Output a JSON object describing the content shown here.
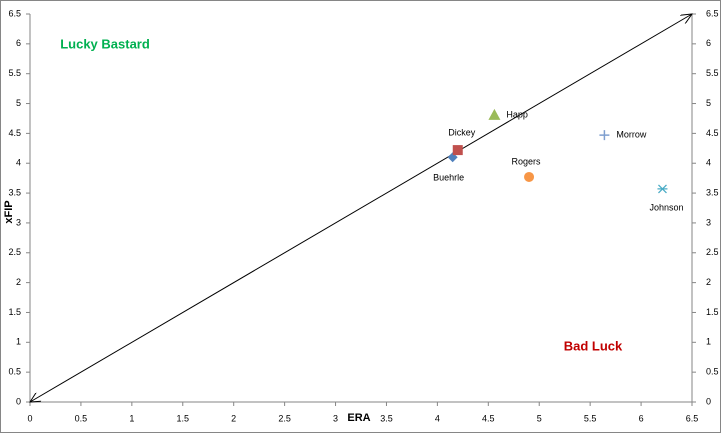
{
  "chart_data": {
    "type": "scatter",
    "x_label": "ERA",
    "y_label": "xFIP",
    "annotations": [
      {
        "text": "Lucky Bastard",
        "color": "#00b050"
      },
      {
        "text": "Bad Luck",
        "color": "#c00000"
      }
    ],
    "series": [
      {
        "name": "Buehrle",
        "marker": "diamond",
        "color": "#4f81bd",
        "x": [
          4.15
        ],
        "y": [
          4.1
        ]
      },
      {
        "name": "Dickey",
        "marker": "square",
        "color": "#c0504d",
        "x": [
          4.2
        ],
        "y": [
          4.22
        ]
      },
      {
        "name": "Happ",
        "marker": "triangle",
        "color": "#9bbb59",
        "x": [
          4.56
        ],
        "y": [
          4.81
        ]
      },
      {
        "name": "Rogers",
        "marker": "circle",
        "color": "#f79646",
        "x": [
          4.9
        ],
        "y": [
          3.77
        ]
      },
      {
        "name": "Morrow",
        "marker": "plus",
        "color": "#7f9fcf",
        "x": [
          5.64
        ],
        "y": [
          4.47
        ]
      },
      {
        "name": "Johnson",
        "marker": "star",
        "color": "#4bacc6",
        "x": [
          6.21
        ],
        "y": [
          3.57
        ]
      }
    ],
    "reference_line": {
      "x": [
        0,
        6.5
      ],
      "y": [
        0,
        6.5
      ],
      "color": "#000000"
    },
    "xlim": [
      0,
      6.5
    ],
    "ylim": [
      0,
      6.5
    ],
    "y2lim": [
      0,
      6.5
    ],
    "xticks": [
      0,
      0.5,
      1,
      1.5,
      2,
      2.5,
      3,
      3.5,
      4,
      4.5,
      5,
      5.5,
      6,
      6.5
    ],
    "yticks": [
      0,
      0.5,
      1,
      1.5,
      2,
      2.5,
      3,
      3.5,
      4,
      4.5,
      5,
      5.5,
      6,
      6.5
    ],
    "y2ticks": [
      0,
      0.5,
      1,
      1.5,
      2,
      2.5,
      3,
      3.5,
      4,
      4.5,
      5,
      5.5,
      6,
      6.5
    ],
    "grid": false
  }
}
